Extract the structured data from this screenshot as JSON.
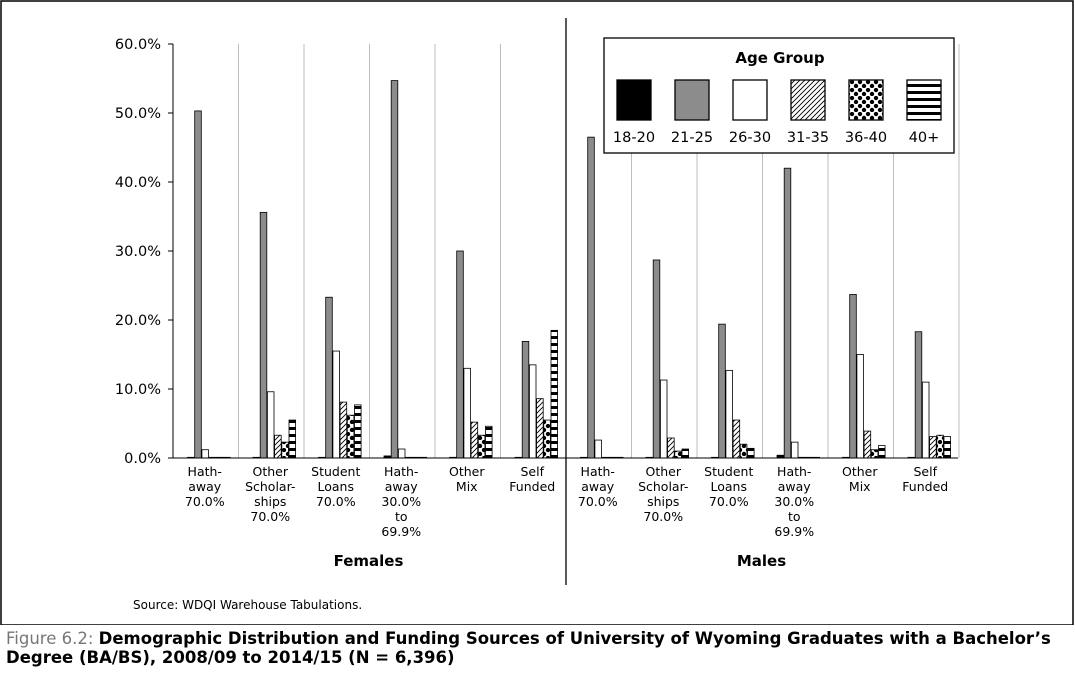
{
  "chart_data": {
    "type": "bar",
    "ylim": [
      0,
      60
    ],
    "ytick_labels": [
      "0.0%",
      "10.0%",
      "20.0%",
      "30.0%",
      "40.0%",
      "50.0%",
      "60.0%"
    ],
    "ytick_values": [
      0,
      10,
      20,
      30,
      40,
      50,
      60
    ],
    "legend": {
      "title": "Age Group",
      "placement": "top-right",
      "entries": [
        "18-20",
        "21-25",
        "26-30",
        "31-35",
        "36-40",
        "40+"
      ]
    },
    "series_colors": [
      "#000000",
      "#8c8c8c",
      "#ffffff",
      "hatch-diagonal",
      "dots",
      "horizontal-stripes"
    ],
    "panels": [
      {
        "name": "Females",
        "categories": [
          [
            "Hath-",
            "away",
            "70.0%"
          ],
          [
            "Other",
            "Scholar-",
            "ships",
            "70.0%"
          ],
          [
            "Student",
            "Loans",
            "70.0%"
          ],
          [
            "Hath-",
            "away",
            "30.0%",
            "to",
            "69.9%"
          ],
          [
            "Other",
            "Mix"
          ],
          [
            "Self",
            "Funded"
          ]
        ],
        "series": [
          {
            "name": "18-20",
            "values": [
              0.1,
              0.1,
              0.1,
              0.3,
              0.1,
              0.1
            ]
          },
          {
            "name": "21-25",
            "values": [
              50.3,
              35.6,
              23.3,
              54.7,
              30.0,
              16.9
            ]
          },
          {
            "name": "26-30",
            "values": [
              1.2,
              9.6,
              15.5,
              1.3,
              13.0,
              13.5
            ]
          },
          {
            "name": "31-35",
            "values": [
              0.1,
              3.3,
              8.1,
              0.1,
              5.2,
              8.6
            ]
          },
          {
            "name": "36-40",
            "values": [
              0.1,
              2.3,
              6.2,
              0.1,
              3.3,
              5.5
            ]
          },
          {
            "name": "40+",
            "values": [
              0.1,
              5.5,
              7.7,
              0.1,
              4.6,
              18.5
            ]
          }
        ]
      },
      {
        "name": "Males",
        "categories": [
          [
            "Hath-",
            "away",
            "70.0%"
          ],
          [
            "Other",
            "Scholar-",
            "ships",
            "70.0%"
          ],
          [
            "Student",
            "Loans",
            "70.0%"
          ],
          [
            "Hath-",
            "away",
            "30.0%",
            "to",
            "69.9%"
          ],
          [
            "Other",
            "Mix"
          ],
          [
            "Self",
            "Funded"
          ]
        ],
        "series": [
          {
            "name": "18-20",
            "values": [
              0.1,
              0.1,
              0.1,
              0.4,
              0.1,
              0.1
            ]
          },
          {
            "name": "21-25",
            "values": [
              46.5,
              28.7,
              19.4,
              42.0,
              23.7,
              18.3
            ]
          },
          {
            "name": "26-30",
            "values": [
              2.6,
              11.3,
              12.7,
              2.3,
              15.0,
              11.0
            ]
          },
          {
            "name": "31-35",
            "values": [
              0.1,
              2.9,
              5.5,
              0.1,
              3.9,
              3.1
            ]
          },
          {
            "name": "36-40",
            "values": [
              0.1,
              1.0,
              2.0,
              0.1,
              1.2,
              3.3
            ]
          },
          {
            "name": "40+",
            "values": [
              0.1,
              1.3,
              1.4,
              0.1,
              1.8,
              3.1
            ]
          }
        ]
      }
    ],
    "source": "Source: WDQI Warehouse Tabulations."
  },
  "caption": {
    "prefix": "Figure 6.2: ",
    "text": "Demographic Distribution and Funding Sources of University of Wyoming Graduates with a Bachelor’s Degree (BA/BS), 2008/09 to 2014/15 (N = 6,396)"
  }
}
